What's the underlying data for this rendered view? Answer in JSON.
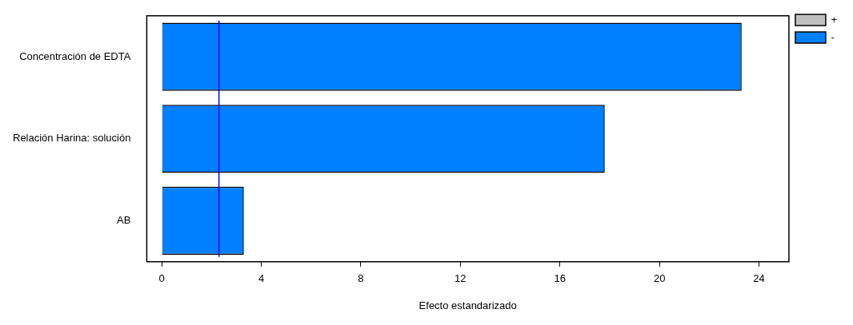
{
  "chart_data": {
    "type": "bar",
    "orientation": "horizontal",
    "stacked": true,
    "xlabel": "Efecto estandarizado",
    "categories": [
      "Concentración de EDTA",
      "Relación Harina: solución",
      "AB"
    ],
    "series": [
      {
        "name": "+",
        "color": "#c0c0c0",
        "values": [
          null,
          null,
          null
        ]
      },
      {
        "name": "-",
        "color": "#0080ff",
        "values": [
          23.3,
          17.8,
          3.3
        ]
      }
    ],
    "xlim": [
      -0.6,
      25.2
    ],
    "xticks": [
      0,
      4,
      8,
      12,
      16,
      20,
      24
    ],
    "grid": false,
    "legend": "top right",
    "ref_lines": [
      {
        "axis": "x",
        "value": 2.3,
        "color": "#0000ff"
      }
    ]
  }
}
